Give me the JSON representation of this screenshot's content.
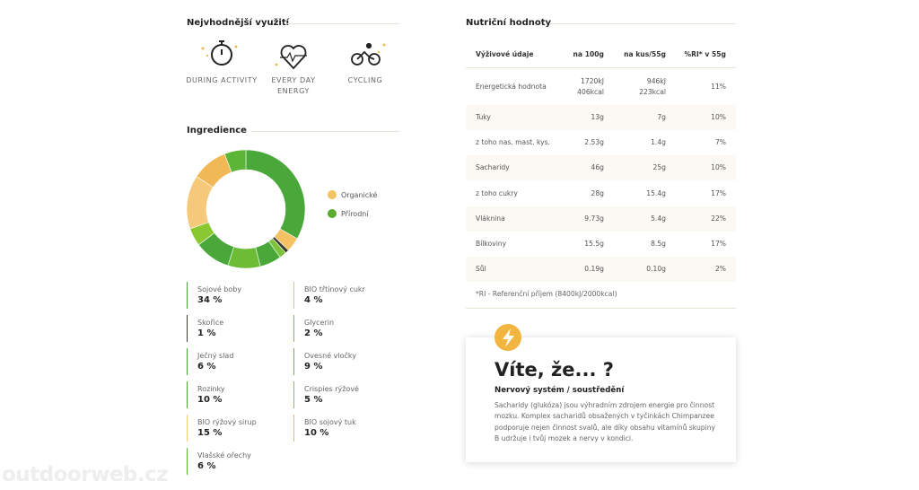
{
  "usage": {
    "title": "Nejvhodnější využití",
    "items": [
      [
        "DURING ACTIVITY"
      ],
      [
        "EVERY DAY",
        "ENERGY"
      ],
      [
        "CYCLING"
      ]
    ]
  },
  "ingredients": {
    "title": "Ingredience"
  },
  "chart_data": {
    "type": "donut",
    "categories": [
      "Sojové boby",
      "BIO třtinový cukr",
      "Skořice",
      "Glycerin",
      "Ječný slad",
      "Ovesné vločky",
      "Rozinky",
      "Crispies rýžové",
      "BIO rýžový sirup",
      "BIO sojový tuk",
      "Vlašské ořechy"
    ],
    "values": [
      34,
      4,
      1,
      2,
      6,
      9,
      10,
      5,
      15,
      10,
      6
    ],
    "value_labels": [
      "34 %",
      "4 %",
      "1 %",
      "2 %",
      "6 %",
      "9 %",
      "10 %",
      "5 %",
      "15 %",
      "10 %",
      "6 %"
    ],
    "colors": [
      "#4aa83a",
      "#f4c163",
      "#3a3a2e",
      "#7cc23a",
      "#4aa83a",
      "#6cbd35",
      "#4aa83a",
      "#8ac832",
      "#f6c97a",
      "#f1b955",
      "#5bb536"
    ],
    "legend": [
      {
        "name": "Organické",
        "color": "#f4c163"
      },
      {
        "name": "Přírodní",
        "color": "#5aab30"
      }
    ]
  },
  "nutrition": {
    "title": "Nutriční hodnoty",
    "header": [
      "Výživové údaje",
      "na 100g",
      "na kus/55g",
      "%RI* v 55g"
    ],
    "rows": [
      [
        [
          "Energetická hodnota"
        ],
        [
          "1720kJ",
          "406kcal"
        ],
        [
          "946kJ",
          "223kcal"
        ],
        [
          "11%"
        ]
      ],
      [
        [
          "Tuky"
        ],
        [
          "13g"
        ],
        [
          "7g"
        ],
        [
          "10%"
        ]
      ],
      [
        [
          "z toho nas. mast. kys."
        ],
        [
          "2.53g"
        ],
        [
          "1.4g"
        ],
        [
          "7%"
        ]
      ],
      [
        [
          "Sacharidy"
        ],
        [
          "46g"
        ],
        [
          "25g"
        ],
        [
          "10%"
        ]
      ],
      [
        [
          "z toho cukry"
        ],
        [
          "28g"
        ],
        [
          "15.4g"
        ],
        [
          "17%"
        ]
      ],
      [
        [
          "Vláknina"
        ],
        [
          "9.73g"
        ],
        [
          "5.4g"
        ],
        [
          "22%"
        ]
      ],
      [
        [
          "Bílkoviny"
        ],
        [
          "15.5g"
        ],
        [
          "8.5g"
        ],
        [
          "17%"
        ]
      ],
      [
        [
          "Sůl"
        ],
        [
          "0.19g"
        ],
        [
          "0.10g"
        ],
        [
          "2%"
        ]
      ]
    ],
    "footnote": "*RI - Referenční příjem (8400kJ/2000kcal)"
  },
  "card": {
    "title": "Víte, že... ?",
    "subtitle": "Nervový systém / soustředění",
    "text": "Sacharidy (glukóza) jsou výhradním zdrojem energie pro činnost mozku. Komplex sacharidů obsažených v tyčinkách Chimpanzee podporuje nejen činnost svalů, ale díky obsahu vitamínů skupiny B udržuje i tvůj mozek a nervy v kondici."
  },
  "watermark": "outdoorweb.cz"
}
